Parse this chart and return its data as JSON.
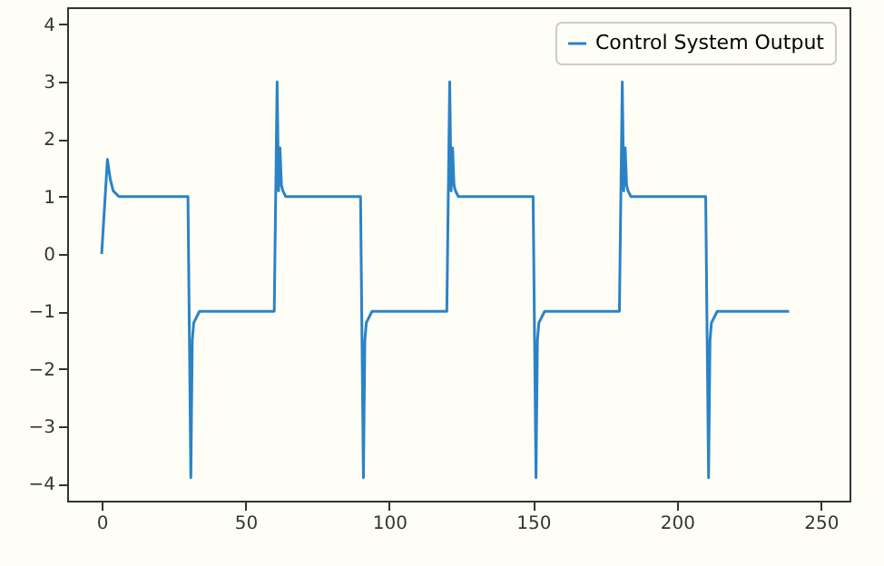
{
  "chart_data": {
    "type": "line",
    "x": [
      0,
      2,
      3,
      4,
      6,
      30,
      31,
      31.5,
      32,
      34,
      60,
      61,
      61.5,
      62,
      62.5,
      63,
      64,
      90,
      91,
      91.5,
      92,
      94,
      120,
      121,
      121.5,
      122,
      122.5,
      123,
      124,
      150,
      151,
      151.5,
      152,
      154,
      180,
      181,
      181.5,
      182,
      182.5,
      183,
      184,
      210,
      211,
      211.5,
      212,
      214,
      239
    ],
    "series": [
      {
        "name": "Control System Output",
        "color": "#2b83c6",
        "values": [
          0,
          1.65,
          1.3,
          1.1,
          1.0,
          1.0,
          -3.9,
          -1.5,
          -1.2,
          -1.0,
          -1.0,
          3.0,
          1.1,
          1.85,
          1.2,
          1.1,
          1.0,
          1.0,
          -3.9,
          -1.5,
          -1.2,
          -1.0,
          -1.0,
          3.0,
          1.1,
          1.85,
          1.2,
          1.1,
          1.0,
          1.0,
          -3.9,
          -1.5,
          -1.2,
          -1.0,
          -1.0,
          3.0,
          1.1,
          1.85,
          1.2,
          1.1,
          1.0,
          1.0,
          -3.9,
          -1.5,
          -1.2,
          -1.0,
          -1.0
        ]
      }
    ],
    "xlim": [
      -12,
      260
    ],
    "ylim": [
      -4.3,
      4.3
    ],
    "xticks": [
      0,
      50,
      100,
      150,
      200,
      250
    ],
    "yticks": [
      -4,
      -3,
      -2,
      -1,
      0,
      1,
      2,
      3,
      4
    ],
    "grid": false,
    "legend": "top right",
    "marker": "none",
    "line_style": "solid"
  }
}
